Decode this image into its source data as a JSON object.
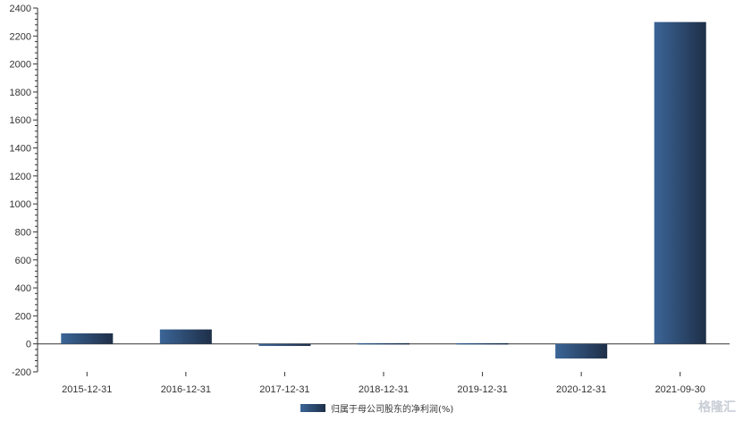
{
  "chart_data": {
    "type": "bar",
    "categories": [
      "2015-12-31",
      "2016-12-31",
      "2017-12-31",
      "2018-12-31",
      "2019-12-31",
      "2020-12-31",
      "2021-09-30"
    ],
    "series": [
      {
        "name": "归属于母公司股东的净利润(%)",
        "values": [
          75,
          103,
          -15,
          5,
          5,
          -105,
          2300
        ]
      }
    ],
    "ylim": [
      -200,
      2400
    ],
    "yticks": [
      -200,
      0,
      200,
      400,
      600,
      800,
      1000,
      1200,
      1400,
      1600,
      1800,
      2000,
      2200,
      2400
    ],
    "grid": false,
    "legend_position": "bottom-center",
    "colors": {
      "bar_start": "#3b6597",
      "bar_end": "#1e2f48",
      "axis": "#333333"
    }
  },
  "watermark": "格隆汇"
}
